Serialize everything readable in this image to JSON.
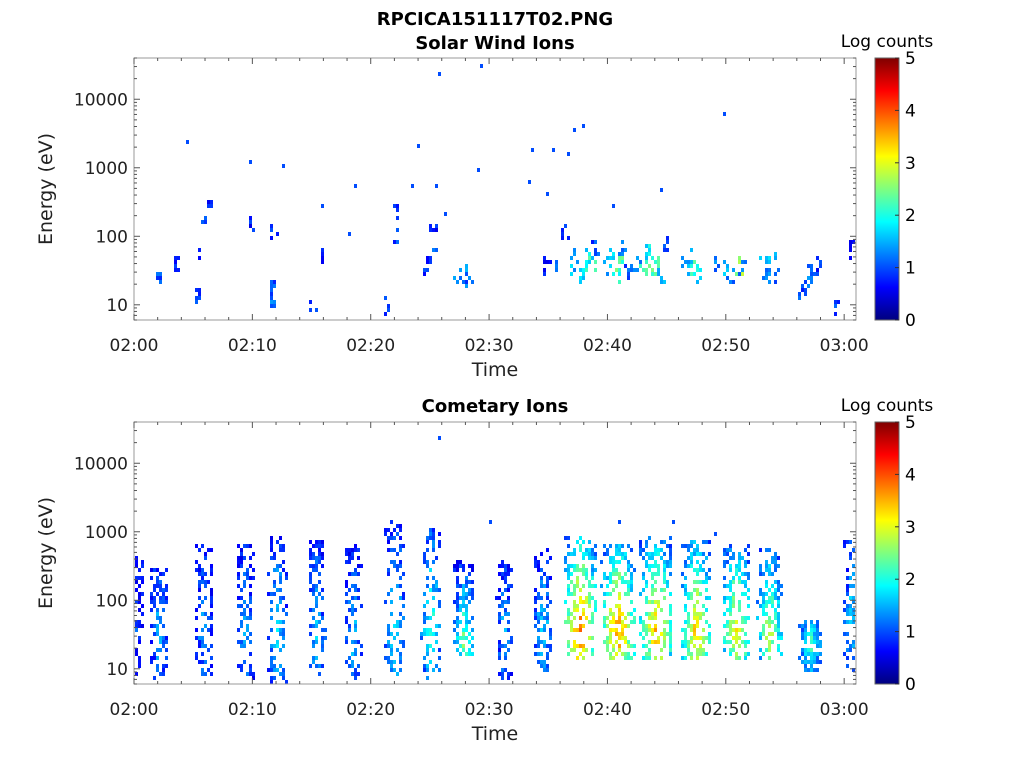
{
  "figure": {
    "title": "RPCICA151117T02.PNG"
  },
  "colormap": {
    "name": "jet",
    "stops": [
      "#00007f",
      "#0000ff",
      "#007fff",
      "#00ffff",
      "#7fff7f",
      "#ffff00",
      "#ff7f00",
      "#ff0000",
      "#7f0000"
    ]
  },
  "chart_data": [
    {
      "type": "heatmap",
      "title": "Solar Wind Ions",
      "xlabel": "Time",
      "ylabel": "Energy (eV)",
      "x_unit": "minutes after 02:00",
      "xlim": [
        0,
        61
      ],
      "ylim": [
        6,
        40000
      ],
      "y_scale": "log",
      "xticks": [
        "02:00",
        "02:10",
        "02:20",
        "02:30",
        "02:40",
        "02:50",
        "03:00"
      ],
      "yticks": [
        "10",
        "100",
        "1000",
        "10000"
      ],
      "colorbar": {
        "label": "Log counts",
        "range": [
          0,
          5
        ],
        "ticks": [
          "0",
          "1",
          "2",
          "3",
          "4",
          "5"
        ]
      },
      "blocks": [
        {
          "t": 2.0,
          "e": 25,
          "v": 1.0
        },
        {
          "t": 3.5,
          "e": 40,
          "v": 0.8
        },
        {
          "t": 5.2,
          "e": 15,
          "v": 1.0
        },
        {
          "t": 5.5,
          "e": 55,
          "v": 0.7
        },
        {
          "t": 6.0,
          "e": 160,
          "v": 1.0
        },
        {
          "t": 6.3,
          "e": 270,
          "v": 0.8
        },
        {
          "t": 9.7,
          "e": 160,
          "v": 0.8
        },
        {
          "t": 11.5,
          "e": 20,
          "v": 1.0
        },
        {
          "t": 11.6,
          "e": 12,
          "v": 1.1
        },
        {
          "t": 11.8,
          "e": 120,
          "v": 0.9
        },
        {
          "t": 15.0,
          "e": 10,
          "v": 0.9
        },
        {
          "t": 15.7,
          "e": 60,
          "v": 0.8
        },
        {
          "t": 21.3,
          "e": 10,
          "v": 0.8
        },
        {
          "t": 21.9,
          "e": 100,
          "v": 0.9
        },
        {
          "t": 22.0,
          "e": 250,
          "v": 0.8
        },
        {
          "t": 24.6,
          "e": 40,
          "v": 0.8
        },
        {
          "t": 25.2,
          "e": 65,
          "v": 1.0
        },
        {
          "t": 25.2,
          "e": 130,
          "v": 0.8
        },
        {
          "t": 27.2,
          "e": 24,
          "v": 1.2
        },
        {
          "t": 27.7,
          "e": 30,
          "v": 1.4
        },
        {
          "t": 28.1,
          "e": 25,
          "v": 1.1
        },
        {
          "t": 34.8,
          "e": 40,
          "v": 0.8
        },
        {
          "t": 35.8,
          "e": 40,
          "v": 1.0
        },
        {
          "t": 36.3,
          "e": 130,
          "v": 0.9
        },
        {
          "t": 37.0,
          "e": 40,
          "v": 1.5
        },
        {
          "t": 37.2,
          "e": 60,
          "v": 1.3
        },
        {
          "t": 37.6,
          "e": 28,
          "v": 1.6
        },
        {
          "t": 38.0,
          "e": 40,
          "v": 2.0
        },
        {
          "t": 38.3,
          "e": 55,
          "v": 1.7
        },
        {
          "t": 38.7,
          "e": 40,
          "v": 2.3
        },
        {
          "t": 39.0,
          "e": 80,
          "v": 1.0
        },
        {
          "t": 40.0,
          "e": 40,
          "v": 1.5
        },
        {
          "t": 40.3,
          "e": 60,
          "v": 1.8
        },
        {
          "t": 40.6,
          "e": 28,
          "v": 2.0
        },
        {
          "t": 40.9,
          "e": 40,
          "v": 2.3
        },
        {
          "t": 41.2,
          "e": 70,
          "v": 1.2
        },
        {
          "t": 41.6,
          "e": 30,
          "v": 1.0
        },
        {
          "t": 42.4,
          "e": 40,
          "v": 1.2
        },
        {
          "t": 43.0,
          "e": 40,
          "v": 2.2
        },
        {
          "t": 43.3,
          "e": 60,
          "v": 1.8
        },
        {
          "t": 43.6,
          "e": 35,
          "v": 2.4
        },
        {
          "t": 44.0,
          "e": 40,
          "v": 2.1
        },
        {
          "t": 44.4,
          "e": 30,
          "v": 1.6
        },
        {
          "t": 44.8,
          "e": 80,
          "v": 1.0
        },
        {
          "t": 46.5,
          "e": 40,
          "v": 1.6
        },
        {
          "t": 46.9,
          "e": 55,
          "v": 1.4
        },
        {
          "t": 47.2,
          "e": 40,
          "v": 2.2
        },
        {
          "t": 47.6,
          "e": 30,
          "v": 1.8
        },
        {
          "t": 49.1,
          "e": 40,
          "v": 1.2
        },
        {
          "t": 49.8,
          "e": 40,
          "v": 1.6
        },
        {
          "t": 50.3,
          "e": 28,
          "v": 1.2
        },
        {
          "t": 51.0,
          "e": 38,
          "v": 2.7
        },
        {
          "t": 51.3,
          "e": 40,
          "v": 1.2
        },
        {
          "t": 53.0,
          "e": 40,
          "v": 1.5
        },
        {
          "t": 53.4,
          "e": 28,
          "v": 1.3
        },
        {
          "t": 53.8,
          "e": 45,
          "v": 1.5
        },
        {
          "t": 54.2,
          "e": 30,
          "v": 1.1
        },
        {
          "t": 56.4,
          "e": 15,
          "v": 1.0
        },
        {
          "t": 56.8,
          "e": 22,
          "v": 1.2
        },
        {
          "t": 57.2,
          "e": 30,
          "v": 1.1
        },
        {
          "t": 57.8,
          "e": 40,
          "v": 0.8
        },
        {
          "t": 59.3,
          "e": 10,
          "v": 0.9
        },
        {
          "t": 60.6,
          "e": 70,
          "v": 0.8
        }
      ],
      "points": [
        {
          "t": 4.5,
          "e": 2600
        },
        {
          "t": 9.6,
          "e": 1300
        },
        {
          "t": 12.5,
          "e": 1150
        },
        {
          "t": 18.7,
          "e": 550
        },
        {
          "t": 15.7,
          "e": 290
        },
        {
          "t": 23.9,
          "e": 2300
        },
        {
          "t": 23.5,
          "e": 600
        },
        {
          "t": 25.6,
          "e": 25000
        },
        {
          "t": 25.5,
          "e": 600
        },
        {
          "t": 29.0,
          "e": 1050
        },
        {
          "t": 29.2,
          "e": 32000
        },
        {
          "t": 33.5,
          "e": 2000
        },
        {
          "t": 33.2,
          "e": 700
        },
        {
          "t": 34.7,
          "e": 450
        },
        {
          "t": 35.3,
          "e": 1900
        },
        {
          "t": 36.6,
          "e": 1750
        },
        {
          "t": 37.2,
          "e": 4000
        },
        {
          "t": 37.9,
          "e": 4100
        },
        {
          "t": 40.5,
          "e": 300
        },
        {
          "t": 44.5,
          "e": 500
        },
        {
          "t": 49.8,
          "e": 6500
        },
        {
          "t": 18.2,
          "e": 110
        },
        {
          "t": 26.1,
          "e": 220
        }
      ]
    },
    {
      "type": "heatmap",
      "title": "Cometary Ions",
      "xlabel": "Time",
      "ylabel": "Energy (eV)",
      "x_unit": "minutes after 02:00",
      "xlim": [
        0,
        61
      ],
      "ylim": [
        6,
        40000
      ],
      "y_scale": "log",
      "xticks": [
        "02:00",
        "02:10",
        "02:20",
        "02:30",
        "02:40",
        "02:50",
        "03:00"
      ],
      "yticks": [
        "10",
        "100",
        "1000",
        "10000"
      ],
      "colorbar": {
        "label": "Log counts",
        "range": [
          0,
          5
        ],
        "ticks": [
          "0",
          "1",
          "2",
          "3",
          "4",
          "5"
        ]
      },
      "bursts": [
        {
          "t": 0.2,
          "w": 0.8,
          "elo": 8,
          "ehi": 500,
          "peak": 1.0,
          "pe": 40
        },
        {
          "t": 2.0,
          "w": 1.3,
          "elo": 8,
          "ehi": 300,
          "peak": 1.6,
          "pe": 40
        },
        {
          "t": 5.8,
          "w": 1.3,
          "elo": 8,
          "ehi": 700,
          "peak": 1.5,
          "pe": 40
        },
        {
          "t": 9.3,
          "w": 1.3,
          "elo": 8,
          "ehi": 700,
          "peak": 1.6,
          "pe": 40
        },
        {
          "t": 12.0,
          "w": 1.4,
          "elo": 7,
          "ehi": 900,
          "peak": 1.8,
          "pe": 40
        },
        {
          "t": 15.3,
          "w": 1.3,
          "elo": 8,
          "ehi": 800,
          "peak": 1.7,
          "pe": 40
        },
        {
          "t": 18.4,
          "w": 1.3,
          "elo": 8,
          "ehi": 700,
          "peak": 1.6,
          "pe": 40
        },
        {
          "t": 21.9,
          "w": 1.5,
          "elo": 8,
          "ehi": 1500,
          "peak": 2.0,
          "pe": 40
        },
        {
          "t": 25.0,
          "w": 1.5,
          "elo": 8,
          "ehi": 1200,
          "peak": 2.2,
          "pe": 40
        },
        {
          "t": 27.8,
          "w": 1.6,
          "elo": 15,
          "ehi": 400,
          "peak": 2.5,
          "pe": 25
        },
        {
          "t": 31.2,
          "w": 1.2,
          "elo": 8,
          "ehi": 400,
          "peak": 1.5,
          "pe": 40
        },
        {
          "t": 34.4,
          "w": 1.3,
          "elo": 10,
          "ehi": 600,
          "peak": 1.8,
          "pe": 40
        },
        {
          "t": 37.6,
          "w": 2.5,
          "elo": 15,
          "ehi": 900,
          "peak": 4.0,
          "pe": 40
        },
        {
          "t": 40.8,
          "w": 2.7,
          "elo": 15,
          "ehi": 700,
          "peak": 3.8,
          "pe": 40
        },
        {
          "t": 44.0,
          "w": 2.6,
          "elo": 15,
          "ehi": 900,
          "peak": 3.6,
          "pe": 40
        },
        {
          "t": 47.4,
          "w": 2.3,
          "elo": 15,
          "ehi": 800,
          "peak": 3.4,
          "pe": 40
        },
        {
          "t": 50.8,
          "w": 2.2,
          "elo": 15,
          "ehi": 700,
          "peak": 3.3,
          "pe": 40
        },
        {
          "t": 53.6,
          "w": 1.9,
          "elo": 15,
          "ehi": 600,
          "peak": 3.0,
          "pe": 35
        },
        {
          "t": 57.0,
          "w": 1.6,
          "elo": 10,
          "ehi": 50,
          "peak": 2.4,
          "pe": 25
        },
        {
          "t": 60.5,
          "w": 1.1,
          "elo": 10,
          "ehi": 800,
          "peak": 1.8,
          "pe": 60
        }
      ],
      "points": [
        {
          "t": 25.8,
          "e": 25000
        },
        {
          "t": 30.0,
          "e": 1400
        },
        {
          "t": 40.9,
          "e": 1500
        },
        {
          "t": 45.5,
          "e": 1400
        },
        {
          "t": 48.9,
          "e": 1000
        }
      ]
    }
  ]
}
